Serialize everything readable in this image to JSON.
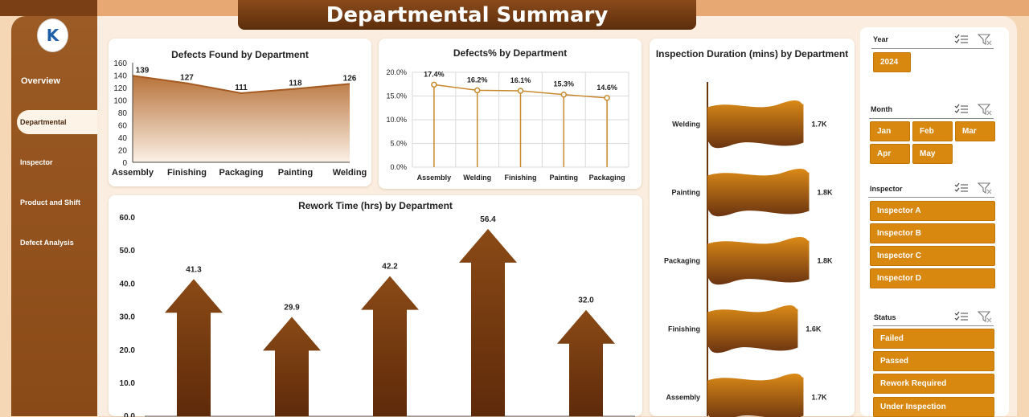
{
  "page": {
    "title": "Departmental Summary"
  },
  "sidebar": {
    "logo_text": "K",
    "items": [
      {
        "label": "Overview"
      },
      {
        "label": "Departmental"
      },
      {
        "label": "Inspector"
      },
      {
        "label": "Product and Shift"
      },
      {
        "label": "Defect Analysis"
      }
    ]
  },
  "colors": {
    "accent": "#d8870f",
    "dark_brown": "#6b3410",
    "area_brown": "#b06a32",
    "background": "#f5d7b5"
  },
  "filters": {
    "year": {
      "label": "Year",
      "options": [
        "2024"
      ]
    },
    "month": {
      "label": "Month",
      "options": [
        "Jan",
        "Feb",
        "Mar",
        "Apr",
        "May"
      ]
    },
    "inspector": {
      "label": "Inspector",
      "options": [
        "Inspector A",
        "Inspector B",
        "Inspector C",
        "Inspector D"
      ]
    },
    "status": {
      "label": "Status",
      "options": [
        "Failed",
        "Passed",
        "Rework Required",
        "Under Inspection"
      ]
    }
  },
  "chart_data": [
    {
      "type": "area",
      "title": "Defects Found by Department",
      "categories": [
        "Assembly",
        "Finishing",
        "Packaging",
        "Painting",
        "Welding"
      ],
      "values": [
        139,
        127,
        111,
        118,
        126
      ],
      "data_labels": [
        "139",
        "127",
        "111",
        "118",
        "126"
      ],
      "y_ticks": [
        "160",
        "140",
        "120",
        "100",
        "80",
        "60",
        "40",
        "20",
        "0"
      ],
      "ylim": [
        0,
        160
      ]
    },
    {
      "type": "line",
      "title": "Defects% by Department",
      "categories": [
        "Assembly",
        "Welding",
        "Finishing",
        "Painting",
        "Packaging"
      ],
      "values": [
        17.4,
        16.2,
        16.1,
        15.3,
        14.6
      ],
      "data_labels": [
        "17.4%",
        "16.2%",
        "16.1%",
        "15.3%",
        "14.6%"
      ],
      "y_ticks": [
        "20.0%",
        "15.0%",
        "10.0%",
        "5.0%",
        "0.0%"
      ],
      "ylim": [
        0,
        20
      ],
      "grid": true
    },
    {
      "type": "bar",
      "title": "Inspection Duration (mins) by Department",
      "orientation": "horizontal",
      "categories": [
        "Welding",
        "Painting",
        "Packaging",
        "Finishing",
        "Assembly"
      ],
      "values": [
        1700,
        1800,
        1800,
        1600,
        1700
      ],
      "data_labels": [
        "1.7K",
        "1.8K",
        "1.8K",
        "1.6K",
        "1.7K"
      ]
    },
    {
      "type": "bar",
      "title": "Rework Time (hrs) by Department",
      "values": [
        41.3,
        29.9,
        42.2,
        56.4,
        32.0
      ],
      "data_labels": [
        "41.3",
        "29.9",
        "42.2",
        "56.4",
        "32.0"
      ],
      "y_ticks": [
        "60.0",
        "50.0",
        "40.0",
        "30.0",
        "20.0",
        "10.0",
        "0.0"
      ],
      "ylim": [
        0,
        60
      ]
    }
  ]
}
